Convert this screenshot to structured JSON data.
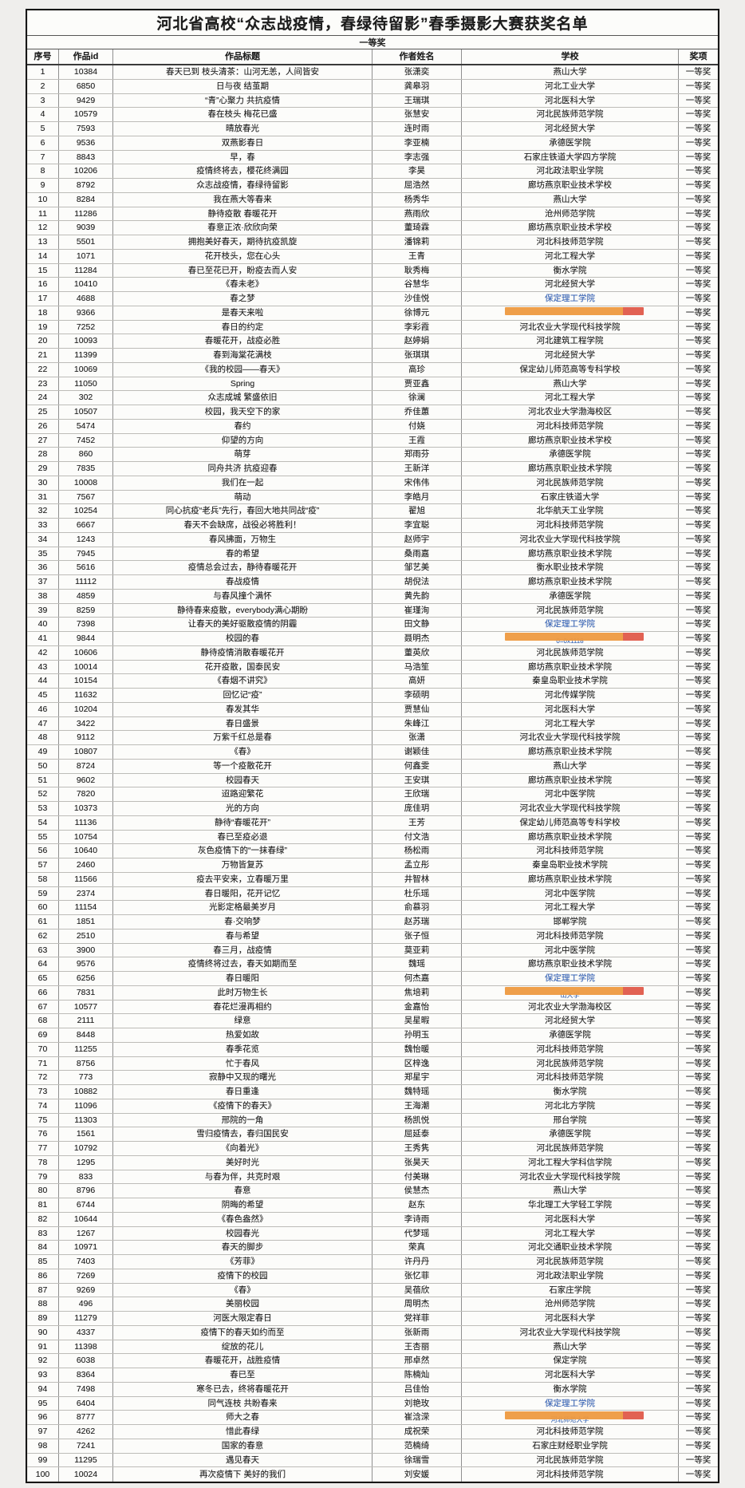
{
  "table": {
    "title": "河北省高校“众志战疫情，春绿待留影”春季摄影大赛获奖名单",
    "section": "一等奖",
    "columns": [
      "序号",
      "作品id",
      "作品标题",
      "作者姓名",
      "学校",
      "奖项"
    ],
    "award_default": "一等奖",
    "colors": {
      "highlight_orange": "#ee9a41",
      "highlight_red": "#e05a4a",
      "link_blue": "#3465c0"
    },
    "rows": [
      {
        "n": "1",
        "id": "10384",
        "title": "春天已到 枝头清茶：山河无恙，人间皆安",
        "author": "张潇奕",
        "school": "燕山大学",
        "award": "一等奖"
      },
      {
        "n": "2",
        "id": "6850",
        "title": "日与夜 结茧期",
        "author": "龚皋羽",
        "school": "河北工业大学",
        "award": "一等奖"
      },
      {
        "n": "3",
        "id": "9429",
        "title": "“青”心聚力 共抗疫情",
        "author": "王瑞琪",
        "school": "河北医科大学",
        "award": "一等奖"
      },
      {
        "n": "4",
        "id": "10579",
        "title": "春在枝头 梅花已盛",
        "author": "张慧安",
        "school": "河北民族师范学院",
        "award": "一等奖"
      },
      {
        "n": "5",
        "id": "7593",
        "title": "晴放春光",
        "author": "连时雨",
        "school": "河北经贸大学",
        "award": "一等奖"
      },
      {
        "n": "6",
        "id": "9536",
        "title": "双燕影春日",
        "author": "李亚楠",
        "school": "承德医学院",
        "award": "一等奖"
      },
      {
        "n": "7",
        "id": "8843",
        "title": "早，春",
        "author": "李志强",
        "school": "石家庄铁道大学四方学院",
        "award": "一等奖"
      },
      {
        "n": "8",
        "id": "10206",
        "title": "疫情终将去，樱花终满园",
        "author": "李昊",
        "school": "河北政法职业学院",
        "award": "一等奖"
      },
      {
        "n": "9",
        "id": "8792",
        "title": "众志战疫情，春绿待留影",
        "author": "屈浩然",
        "school": "廊坊燕京职业技术学校",
        "award": "一等奖"
      },
      {
        "n": "10",
        "id": "8284",
        "title": "我在燕大等春来",
        "author": "杨秀华",
        "school": "燕山大学",
        "award": "一等奖"
      },
      {
        "n": "11",
        "id": "11286",
        "title": "静待疫散 春暖花开",
        "author": "燕雨欣",
        "school": "沧州师范学院",
        "award": "一等奖"
      },
      {
        "n": "12",
        "id": "9039",
        "title": "春意正浓·欣欣向荣",
        "author": "董琦霖",
        "school": "廊坊燕京职业技术学校",
        "award": "一等奖"
      },
      {
        "n": "13",
        "id": "5501",
        "title": "拥抱美好春天，期待抗疫凯旋",
        "author": "潘锦莉",
        "school": "河北科技师范学院",
        "award": "一等奖"
      },
      {
        "n": "14",
        "id": "1071",
        "title": "花开枝头，您在心头",
        "author": "王青",
        "school": "河北工程大学",
        "award": "一等奖"
      },
      {
        "n": "15",
        "id": "11284",
        "title": "春已至花已开，盼疫去而人安",
        "author": "耿秀梅",
        "school": "衡水学院",
        "award": "一等奖"
      },
      {
        "n": "16",
        "id": "10410",
        "title": "《春未老》",
        "author": "谷慧华",
        "school": "河北经贸大学",
        "award": "一等奖"
      },
      {
        "n": "17",
        "id": "4688",
        "title": "春之梦",
        "author": "沙佳悦",
        "school": "保定理工学院",
        "school_style": "link",
        "award": "一等奖"
      },
      {
        "n": "18",
        "id": "9366",
        "title": "是春天来啦",
        "author": "徐博元",
        "school": "",
        "school_style": "redacted",
        "school_frag": "",
        "award": "一等奖"
      },
      {
        "n": "19",
        "id": "7252",
        "title": "春日的约定",
        "author": "李彩霞",
        "school": "河北农业大学现代科技学院",
        "award": "一等奖"
      },
      {
        "n": "20",
        "id": "10093",
        "title": "春暖花开，战疫必胜",
        "author": "赵婷娟",
        "school": "河北建筑工程学院",
        "award": "一等奖"
      },
      {
        "n": "21",
        "id": "11399",
        "title": "春到海棠花满枝",
        "author": "张琪琪",
        "school": "河北经贸大学",
        "award": "一等奖"
      },
      {
        "n": "22",
        "id": "10069",
        "title": "《我的校园——春天》",
        "author": "高珍",
        "school": "保定幼儿师范高等专科学校",
        "award": "一等奖"
      },
      {
        "n": "23",
        "id": "11050",
        "title": "Spring",
        "author": "贾亚鑫",
        "school": "燕山大学",
        "award": "一等奖"
      },
      {
        "n": "24",
        "id": "302",
        "title": "众志成城 繁盛依旧",
        "author": "徐澜",
        "school": "河北工程大学",
        "award": "一等奖"
      },
      {
        "n": "25",
        "id": "10507",
        "title": "校园，我天空下的家",
        "author": "乔佳蕙",
        "school": "河北农业大学渤海校区",
        "award": "一等奖"
      },
      {
        "n": "26",
        "id": "5474",
        "title": "春约",
        "author": "付娆",
        "school": "河北科技师范学院",
        "award": "一等奖"
      },
      {
        "n": "27",
        "id": "7452",
        "title": "仰望的方向",
        "author": "王霞",
        "school": "廊坊燕京职业技术学校",
        "award": "一等奖"
      },
      {
        "n": "28",
        "id": "860",
        "title": "萌芽",
        "author": "郑雨芬",
        "school": "承德医学院",
        "award": "一等奖"
      },
      {
        "n": "29",
        "id": "7835",
        "title": "同舟共济 抗疫迎春",
        "author": "王新洋",
        "school": "廊坊燕京职业技术学院",
        "award": "一等奖"
      },
      {
        "n": "30",
        "id": "10008",
        "title": "我们在一起",
        "author": "宋伟伟",
        "school": "河北民族师范学院",
        "award": "一等奖"
      },
      {
        "n": "31",
        "id": "7567",
        "title": "萌动",
        "author": "李皓月",
        "school": "石家庄铁道大学",
        "award": "一等奖"
      },
      {
        "n": "32",
        "id": "10254",
        "title": "同心抗疫“老兵”先行，春回大地共同战“疫”",
        "author": "翟旭",
        "school": "北华航天工业学院",
        "award": "一等奖"
      },
      {
        "n": "33",
        "id": "6667",
        "title": "春天不会缺席，战役必将胜利！",
        "author": "李宜聪",
        "school": "河北科技师范学院",
        "award": "一等奖"
      },
      {
        "n": "34",
        "id": "1243",
        "title": "春风拂面，万物生",
        "author": "赵师宇",
        "school": "河北农业大学现代科技学院",
        "award": "一等奖"
      },
      {
        "n": "35",
        "id": "7945",
        "title": "春的希望",
        "author": "桑雨嘉",
        "school": "廊坊燕京职业技术学院",
        "award": "一等奖"
      },
      {
        "n": "36",
        "id": "5616",
        "title": "疫情总会过去，静待春暖花开",
        "author": "邹艺美",
        "school": "衡水职业技术学院",
        "award": "一等奖"
      },
      {
        "n": "37",
        "id": "11112",
        "title": "春战疫情",
        "author": "胡倪法",
        "school": "廊坊燕京职业技术学院",
        "award": "一等奖"
      },
      {
        "n": "38",
        "id": "4859",
        "title": "与春风撞个满怀",
        "author": "黄先韵",
        "school": "承德医学院",
        "award": "一等奖"
      },
      {
        "n": "39",
        "id": "8259",
        "title": "静待春来疫散，everybody满心期盼",
        "author": "崔瑾洵",
        "school": "河北民族师范学院",
        "award": "一等奖"
      },
      {
        "n": "40",
        "id": "7398",
        "title": "让春天的美好驱散疫情的阴霾",
        "author": "田文静",
        "school": "保定理工学院",
        "school_style": "link",
        "award": "一等奖"
      },
      {
        "n": "41",
        "id": "9844",
        "title": "校园的春",
        "author": "聂明杰",
        "school": "",
        "school_style": "redacted",
        "school_frag": "0=0x1118",
        "award": "一等奖"
      },
      {
        "n": "42",
        "id": "10606",
        "title": "静待疫情消散春暖花开",
        "author": "董英欣",
        "school": "河北民族师范学院",
        "award": "一等奖"
      },
      {
        "n": "43",
        "id": "10014",
        "title": "花开疫散，国泰民安",
        "author": "马浩笙",
        "school": "廊坊燕京职业技术学院",
        "award": "一等奖"
      },
      {
        "n": "44",
        "id": "10154",
        "title": "《春烟不讲究》",
        "author": "高妍",
        "school": "秦皇岛职业技术学院",
        "award": "一等奖"
      },
      {
        "n": "45",
        "id": "11632",
        "title": "回忆记“疫”",
        "author": "李硕明",
        "school": "河北传媒学院",
        "award": "一等奖"
      },
      {
        "n": "46",
        "id": "10204",
        "title": "春发其华",
        "author": "贾慧仙",
        "school": "河北医科大学",
        "award": "一等奖"
      },
      {
        "n": "47",
        "id": "3422",
        "title": "春日盛景",
        "author": "朱峰江",
        "school": "河北工程大学",
        "award": "一等奖"
      },
      {
        "n": "48",
        "id": "9112",
        "title": "万紫千红总是春",
        "author": "张潇",
        "school": "河北农业大学现代科技学院",
        "award": "一等奖"
      },
      {
        "n": "49",
        "id": "10807",
        "title": "《春》",
        "author": "谢颖佳",
        "school": "廊坊燕京职业技术学院",
        "award": "一等奖"
      },
      {
        "n": "50",
        "id": "8724",
        "title": "等一个疫散花开",
        "author": "何鑫雯",
        "school": "燕山大学",
        "award": "一等奖"
      },
      {
        "n": "51",
        "id": "9602",
        "title": "校园春天",
        "author": "王安琪",
        "school": "廊坊燕京职业技术学院",
        "award": "一等奖"
      },
      {
        "n": "52",
        "id": "7820",
        "title": "迢路迎繁花",
        "author": "王欣瑞",
        "school": "河北中医学院",
        "award": "一等奖"
      },
      {
        "n": "53",
        "id": "10373",
        "title": "光的方向",
        "author": "庞佳玥",
        "school": "河北农业大学现代科技学院",
        "award": "一等奖"
      },
      {
        "n": "54",
        "id": "11136",
        "title": "静待“春暖花开”",
        "author": "王芳",
        "school": "保定幼儿师范高等专科学校",
        "award": "一等奖"
      },
      {
        "n": "55",
        "id": "10754",
        "title": "春已至疫必退",
        "author": "付文浩",
        "school": "廊坊燕京职业技术学院",
        "award": "一等奖"
      },
      {
        "n": "56",
        "id": "10640",
        "title": "灰色疫情下的“一抹春绿”",
        "author": "杨松雨",
        "school": "河北科技师范学院",
        "award": "一等奖"
      },
      {
        "n": "57",
        "id": "2460",
        "title": "万物皆复苏",
        "author": "孟立彤",
        "school": "秦皇岛职业技术学院",
        "award": "一等奖"
      },
      {
        "n": "58",
        "id": "11566",
        "title": "疫去平安来，立春暖万里",
        "author": "井智林",
        "school": "廊坊燕京职业技术学院",
        "award": "一等奖"
      },
      {
        "n": "59",
        "id": "2374",
        "title": "春日暖阳，花开记忆",
        "author": "杜乐瑶",
        "school": "河北中医学院",
        "award": "一等奖"
      },
      {
        "n": "60",
        "id": "11154",
        "title": "光影定格最美岁月",
        "author": "俞慕羽",
        "school": "河北工程大学",
        "award": "一等奖"
      },
      {
        "n": "61",
        "id": "1851",
        "title": "春·交响梦",
        "author": "赵苏瑞",
        "school": "邯郸学院",
        "award": "一等奖"
      },
      {
        "n": "62",
        "id": "2510",
        "title": "春与希望",
        "author": "张子恒",
        "school": "河北科技师范学院",
        "award": "一等奖"
      },
      {
        "n": "63",
        "id": "3900",
        "title": "春三月，战疫情",
        "author": "莫亚莉",
        "school": "河北中医学院",
        "award": "一等奖"
      },
      {
        "n": "64",
        "id": "9576",
        "title": "疫情终将过去，春天如期而至",
        "author": "魏瑶",
        "school": "廊坊燕京职业技术学院",
        "award": "一等奖"
      },
      {
        "n": "65",
        "id": "6256",
        "title": "春日暖阳",
        "author": "何杰嘉",
        "school": "保定理工学院",
        "school_style": "link",
        "award": "一等奖"
      },
      {
        "n": "66",
        "id": "7831",
        "title": "此时万物生长",
        "author": "焦培莉",
        "school": "",
        "school_style": "redacted",
        "school_frag": "山大学",
        "award": "一等奖"
      },
      {
        "n": "67",
        "id": "10577",
        "title": "春花烂漫再相约",
        "author": "金嘉怡",
        "school": "河北农业大学渤海校区",
        "award": "一等奖"
      },
      {
        "n": "68",
        "id": "2111",
        "title": "绿意",
        "author": "吴星暇",
        "school": "河北经贸大学",
        "award": "一等奖"
      },
      {
        "n": "69",
        "id": "8448",
        "title": "热爱如故",
        "author": "孙明玉",
        "school": "承德医学院",
        "award": "一等奖"
      },
      {
        "n": "70",
        "id": "11255",
        "title": "春季花览",
        "author": "魏怡暖",
        "school": "河北科技师范学院",
        "award": "一等奖"
      },
      {
        "n": "71",
        "id": "8756",
        "title": "忙于春风",
        "author": "区梓逸",
        "school": "河北民族师范学院",
        "award": "一等奖"
      },
      {
        "n": "72",
        "id": "773",
        "title": "寂静中又现的曙光",
        "author": "郑星宇",
        "school": "河北科技师范学院",
        "award": "一等奖"
      },
      {
        "n": "73",
        "id": "10882",
        "title": "春日重逢",
        "author": "魏特瑶",
        "school": "衡水学院",
        "award": "一等奖"
      },
      {
        "n": "74",
        "id": "11096",
        "title": "《疫情下的春天》",
        "author": "王海潮",
        "school": "河北北方学院",
        "award": "一等奖"
      },
      {
        "n": "75",
        "id": "11303",
        "title": "邢院的一角",
        "author": "杨凯悦",
        "school": "邢台学院",
        "award": "一等奖"
      },
      {
        "n": "76",
        "id": "1561",
        "title": "雪归疫情去，春归国民安",
        "author": "屈延泰",
        "school": "承德医学院",
        "award": "一等奖"
      },
      {
        "n": "77",
        "id": "10792",
        "title": "《向着光》",
        "author": "王秀隽",
        "school": "河北民族师范学院",
        "award": "一等奖"
      },
      {
        "n": "78",
        "id": "1295",
        "title": "美好时光",
        "author": "张昊天",
        "school": "河北工程大学科信学院",
        "award": "一等奖"
      },
      {
        "n": "79",
        "id": "833",
        "title": "与春为伴，共克时艰",
        "author": "付美琳",
        "school": "河北农业大学现代科技学院",
        "award": "一等奖"
      },
      {
        "n": "80",
        "id": "8796",
        "title": "春意",
        "author": "侯慧杰",
        "school": "燕山大学",
        "award": "一等奖"
      },
      {
        "n": "81",
        "id": "6744",
        "title": "阴晦的希望",
        "author": "赵东",
        "school": "华北理工大学轻工学院",
        "award": "一等奖"
      },
      {
        "n": "82",
        "id": "10644",
        "title": "《春色盎然》",
        "author": "李诗雨",
        "school": "河北医科大学",
        "award": "一等奖"
      },
      {
        "n": "83",
        "id": "1267",
        "title": "校园春光",
        "author": "代梦瑶",
        "school": "河北工程大学",
        "award": "一等奖"
      },
      {
        "n": "84",
        "id": "10971",
        "title": "春天的脚步",
        "author": "荣真",
        "school": "河北交通职业技术学院",
        "award": "一等奖"
      },
      {
        "n": "85",
        "id": "7403",
        "title": "《芳菲》",
        "author": "许丹丹",
        "school": "河北民族师范学院",
        "award": "一等奖"
      },
      {
        "n": "86",
        "id": "7269",
        "title": "疫情下的校园",
        "author": "张忆菲",
        "school": "河北政法职业学院",
        "award": "一等奖"
      },
      {
        "n": "87",
        "id": "9269",
        "title": "《春》",
        "author": "吴蓓欣",
        "school": "石家庄学院",
        "award": "一等奖"
      },
      {
        "n": "88",
        "id": "496",
        "title": "美丽校园",
        "author": "周明杰",
        "school": "沧州师范学院",
        "award": "一等奖"
      },
      {
        "n": "89",
        "id": "11279",
        "title": "河医大限定春日",
        "author": "党祥菲",
        "school": "河北医科大学",
        "award": "一等奖"
      },
      {
        "n": "90",
        "id": "4337",
        "title": "疫情下的春天如约而至",
        "author": "张新雨",
        "school": "河北农业大学现代科技学院",
        "award": "一等奖"
      },
      {
        "n": "91",
        "id": "11398",
        "title": "绽放的花儿",
        "author": "王杏丽",
        "school": "燕山大学",
        "award": "一等奖"
      },
      {
        "n": "92",
        "id": "6038",
        "title": "春暖花开，战胜疫情",
        "author": "邢卓然",
        "school": "保定学院",
        "award": "一等奖"
      },
      {
        "n": "93",
        "id": "8364",
        "title": "春已至",
        "author": "陈楠灿",
        "school": "河北医科大学",
        "award": "一等奖"
      },
      {
        "n": "94",
        "id": "7498",
        "title": "寒冬已去，终将春暖花开",
        "author": "吕佳怡",
        "school": "衡水学院",
        "award": "一等奖"
      },
      {
        "n": "95",
        "id": "6404",
        "title": "同气连枝 共盼春来",
        "author": "刘艳玫",
        "school": "保定理工学院",
        "school_style": "link",
        "award": "一等奖"
      },
      {
        "n": "96",
        "id": "8777",
        "title": "师大之春",
        "author": "崔浛溁",
        "school": "",
        "school_style": "redacted",
        "school_frag": "河北师范大学",
        "award": "一等奖"
      },
      {
        "n": "97",
        "id": "4262",
        "title": "惜此春绿",
        "author": "成祝荣",
        "school": "河北科技师范学院",
        "award": "一等奖"
      },
      {
        "n": "98",
        "id": "7241",
        "title": "国家的春意",
        "author": "范楠绮",
        "school": "石家庄财经职业学院",
        "award": "一等奖"
      },
      {
        "n": "99",
        "id": "11295",
        "title": "遇见春天",
        "author": "徐瑞雪",
        "school": "河北民族师范学院",
        "award": "一等奖"
      },
      {
        "n": "100",
        "id": "10024",
        "title": "再次疫情下 美好的我们",
        "author": "刘安媛",
        "school": "河北科技师范学院",
        "award": "一等奖"
      }
    ]
  }
}
